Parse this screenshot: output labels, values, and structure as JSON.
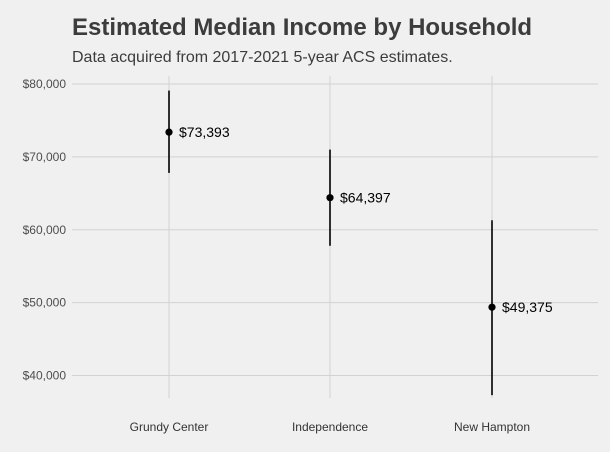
{
  "chart_data": {
    "type": "errorbar",
    "title": "Estimated Median Income by Household",
    "subtitle": "Data acquired from 2017-2021 5-year ACS estimates.",
    "categories": [
      "Grundy Center",
      "Independence",
      "New Hampton"
    ],
    "values": [
      73393,
      64397,
      49375
    ],
    "lower": [
      67800,
      57800,
      37300
    ],
    "upper": [
      79100,
      71000,
      61300
    ],
    "data_labels": [
      "$73,393",
      "$64,397",
      "$49,375"
    ],
    "y_ticks": [
      40000,
      50000,
      60000,
      70000,
      80000
    ],
    "y_tick_labels": [
      "$40,000",
      "$50,000",
      "$60,000",
      "$70,000",
      "$80,000"
    ],
    "ylim": [
      37300,
      80000
    ],
    "xlabel": "",
    "ylabel": "",
    "grid": true,
    "colors": {
      "background": "#f0f0f0",
      "grid": "#d2d2d2",
      "marks": "#000000",
      "title": "#3c3c3c"
    }
  }
}
